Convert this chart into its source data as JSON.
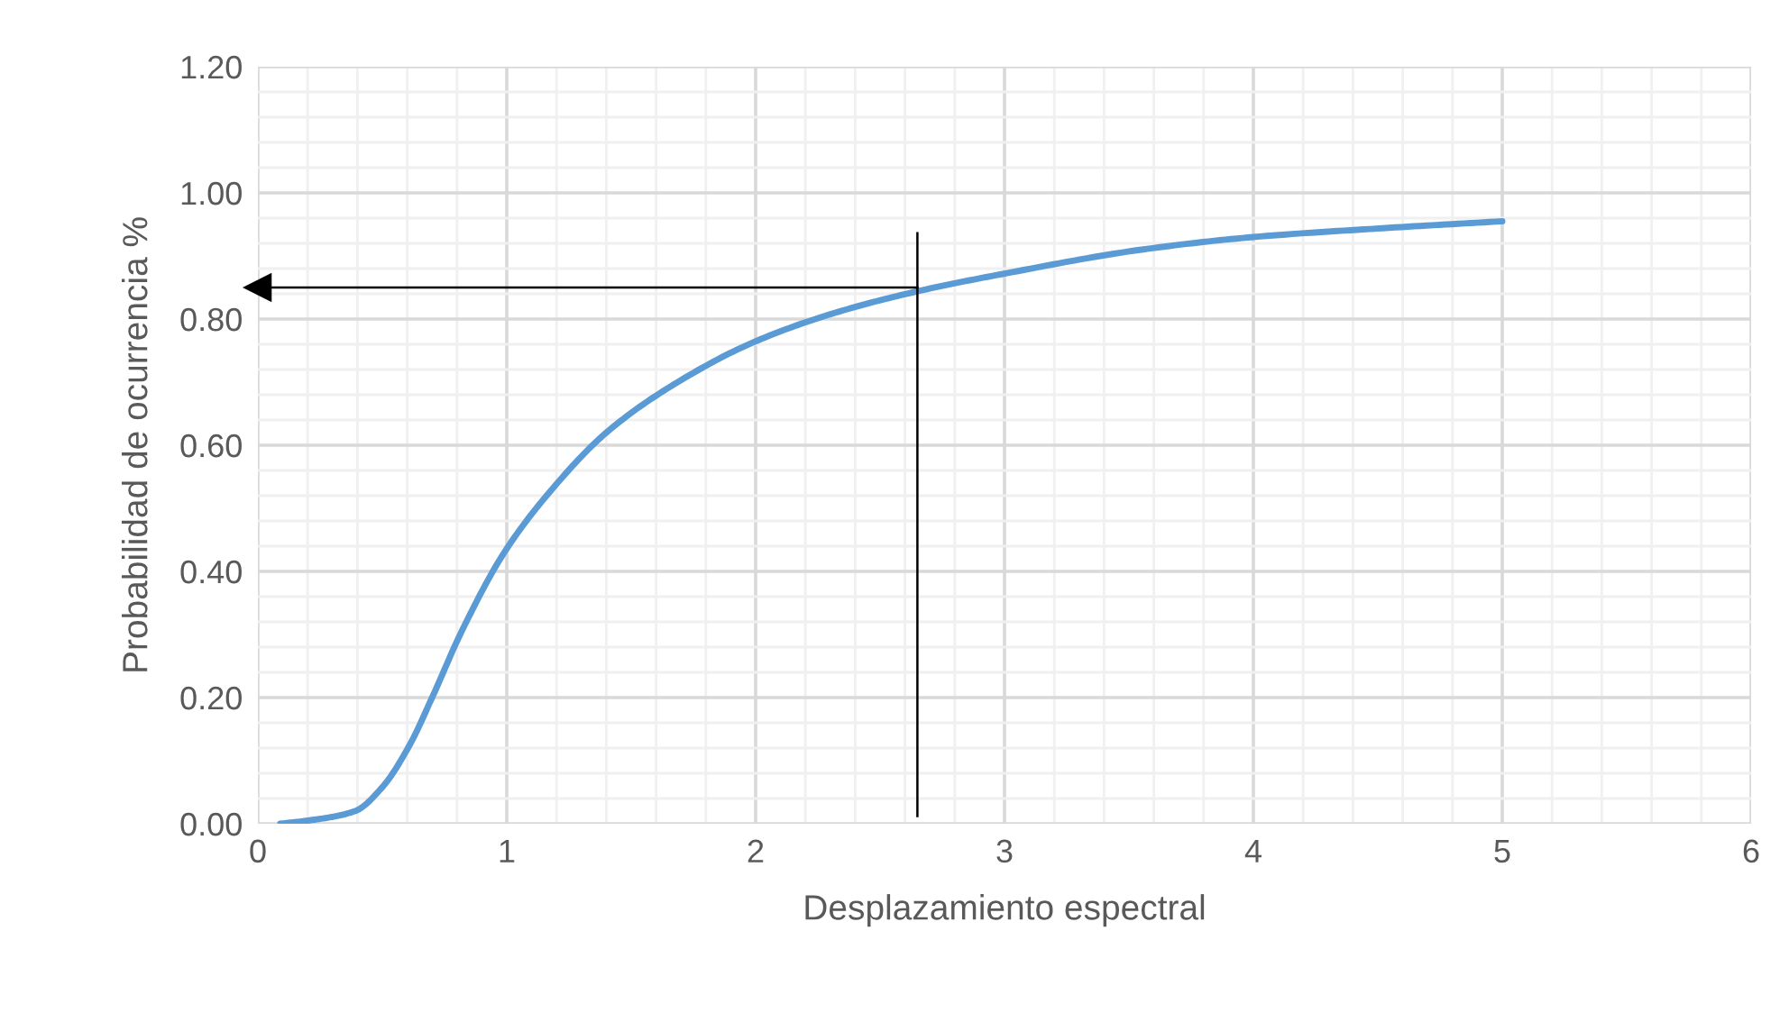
{
  "chart_data": {
    "type": "line",
    "xlabel": "Desplazamiento espectral",
    "ylabel": "Probabilidad de ocurrencia %",
    "x": [
      0.09,
      0.22,
      0.39,
      0.5,
      0.61,
      0.7,
      0.82,
      0.99,
      1.19,
      1.4,
      1.67,
      1.99,
      2.32,
      2.65,
      3.0,
      3.55,
      4.0,
      4.52,
      5.0
    ],
    "series": [
      {
        "color": "#5b9bd5",
        "values": [
          0.0,
          0.006,
          0.02,
          0.058,
          0.125,
          0.2,
          0.306,
          0.43,
          0.534,
          0.62,
          0.696,
          0.763,
          0.81,
          0.844,
          0.872,
          0.91,
          0.93,
          0.944,
          0.955
        ]
      }
    ],
    "xlim": [
      0,
      6
    ],
    "xticks": [
      0,
      1,
      2,
      3,
      4,
      5,
      6
    ],
    "ylim": [
      0,
      1.2
    ],
    "yticks": [
      {
        "value": 0,
        "label": "0.00"
      },
      {
        "value": 0.2,
        "label": "0.20"
      },
      {
        "value": 0.4,
        "label": "0.40"
      },
      {
        "value": 0.6,
        "label": "0.60"
      },
      {
        "value": 0.8,
        "label": "0.80"
      },
      {
        "value": 1.0,
        "label": "1.00"
      },
      {
        "value": 1.2,
        "label": "1.20"
      }
    ],
    "grid": true,
    "legend": false,
    "marker": "none",
    "line_style": "solid",
    "ref_lines": [
      {
        "axis": "x",
        "value": 2.65,
        "color": "#000000"
      },
      {
        "axis": "y",
        "value": 0.85,
        "color": "#000000"
      }
    ]
  }
}
